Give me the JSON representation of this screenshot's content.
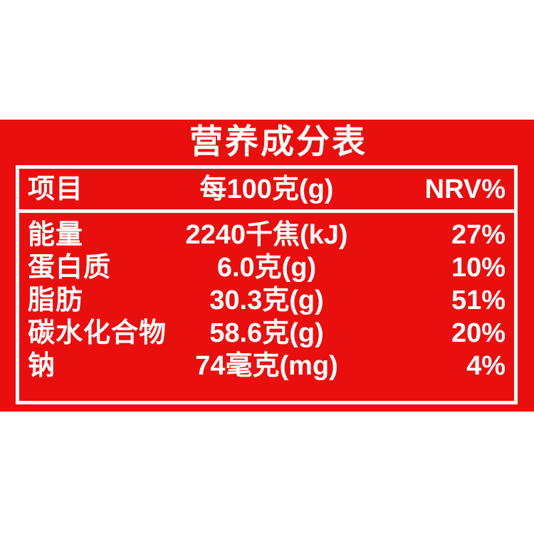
{
  "page": {
    "background": "#FFFFFF"
  },
  "label": {
    "title": "营养成分表",
    "panel_color": "#E90F0F",
    "text_color": "#FFFFFF",
    "table": {
      "headers": {
        "item": "项目",
        "amount": "每100克(g)",
        "nrv": "NRV%"
      },
      "rows": [
        {
          "item": "能量",
          "amount": "2240千焦(kJ)",
          "nrv": "27%"
        },
        {
          "item": "蛋白质",
          "amount": "6.0克(g)",
          "nrv": "10%"
        },
        {
          "item": "脂肪",
          "amount": "30.3克(g)",
          "nrv": "51%"
        },
        {
          "item": "碳水化合物",
          "amount": "58.6克(g)",
          "nrv": "20%"
        },
        {
          "item": "钠",
          "amount": "74毫克(mg)",
          "nrv": "4%"
        }
      ]
    }
  }
}
